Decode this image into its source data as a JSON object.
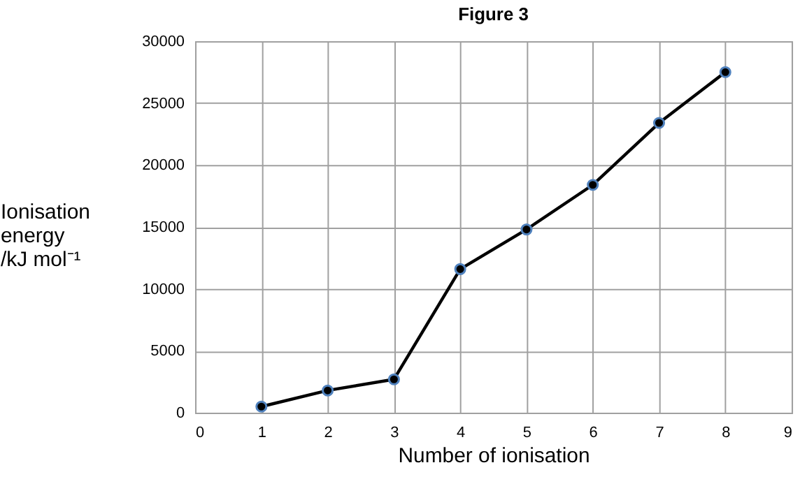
{
  "chart_data": {
    "type": "line",
    "title": "Figure 3",
    "xlabel": "Number of ionisation",
    "ylabel": "Ionisation energy /kJ mol⁻¹",
    "x": [
      1,
      2,
      3,
      4,
      5,
      6,
      7,
      8
    ],
    "series": [
      {
        "color": "#000000",
        "values": [
          500,
          1800,
          2700,
          11600,
          14800,
          18400,
          23400,
          27500
        ]
      }
    ],
    "xlim": [
      0,
      9
    ],
    "xticks": [
      0,
      1,
      2,
      3,
      4,
      5,
      6,
      7,
      8,
      9
    ],
    "ylim": [
      0,
      30000
    ],
    "yticks": [
      0,
      5000,
      10000,
      15000,
      20000,
      25000,
      30000
    ],
    "grid": true,
    "marker": "circle",
    "line_style": "solid"
  }
}
